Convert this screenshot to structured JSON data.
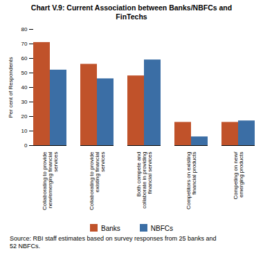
{
  "chart_data": {
    "type": "bar",
    "title": "Chart V.9: Current Association between Banks/NBFCs and\nFinTechs",
    "categories": [
      "Collaborating to provide\nnew/emerging financial\nservices",
      "Collaborating to provide\nexisting financial\nservices",
      "Both compete and\ncollaborate in providing\nfinancial services",
      "Competitors on existing\nfinancial products",
      "Competing on new/\nemerging products"
    ],
    "series": [
      {
        "name": "Banks",
        "color": "#C0522A",
        "values": [
          71,
          56,
          48,
          16,
          16
        ]
      },
      {
        "name": "NBFCs",
        "color": "#3B6EA5",
        "values": [
          52,
          46,
          59,
          6,
          17
        ]
      }
    ],
    "ylabel": "Per cent of Respondents",
    "ylim": [
      0,
      80
    ],
    "yticks": [
      0,
      10,
      20,
      30,
      40,
      50,
      60,
      70,
      80
    ],
    "grid": false,
    "legend": "bottom",
    "source": "Source: RBI staff estimates based on survey responses from 25 banks and\n52 NBFCs."
  }
}
